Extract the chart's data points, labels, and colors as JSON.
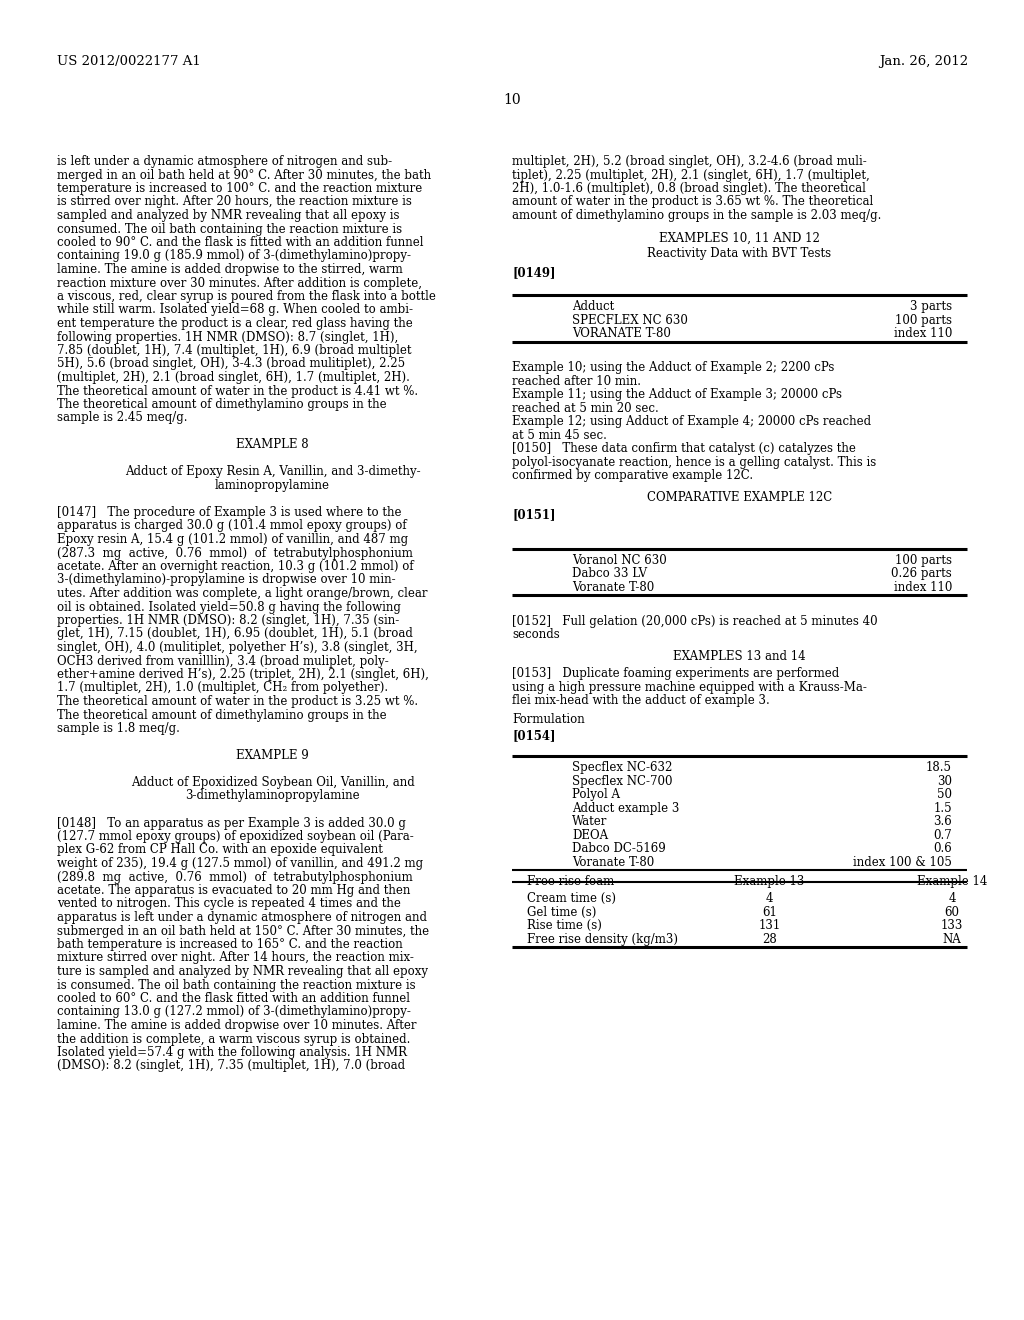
{
  "page_number": "10",
  "header_left": "US 2012/0022177 A1",
  "header_right": "Jan. 26, 2012",
  "left_col_text": [
    "is left under a dynamic atmosphere of nitrogen and sub-",
    "merged in an oil bath held at 90° C. After 30 minutes, the bath",
    "temperature is increased to 100° C. and the reaction mixture",
    "is stirred over night. After 20 hours, the reaction mixture is",
    "sampled and analyzed by NMR revealing that all epoxy is",
    "consumed. The oil bath containing the reaction mixture is",
    "cooled to 90° C. and the flask is fitted with an addition funnel",
    "containing 19.0 g (185.9 mmol) of 3-(dimethylamino)propy-",
    "lamine. The amine is added dropwise to the stirred, warm",
    "reaction mixture over 30 minutes. After addition is complete,",
    "a viscous, red, clear syrup is poured from the flask into a bottle",
    "while still warm. Isolated yield=68 g. When cooled to ambi-",
    "ent temperature the product is a clear, red glass having the",
    "following properties. 1H NMR (DMSO): 8.7 (singlet, 1H),",
    "7.85 (doublet, 1H), 7.4 (multiplet, 1H), 6.9 (broad multiplet",
    "5H), 5.6 (broad singlet, OH), 3-4.3 (broad mulitiplet), 2.25",
    "(multiplet, 2H), 2.1 (broad singlet, 6H), 1.7 (multiplet, 2H).",
    "The theoretical amount of water in the product is 4.41 wt %.",
    "The theoretical amount of dimethylamino groups in the",
    "sample is 2.45 meq/g.",
    "",
    "EXAMPLE 8",
    "",
    "Adduct of Epoxy Resin A, Vanillin, and 3-dimethy-",
    "laminopropylamine",
    "",
    "[0147]   The procedure of Example 3 is used where to the",
    "apparatus is charged 30.0 g (101.4 mmol epoxy groups) of",
    "Epoxy resin A, 15.4 g (101.2 mmol) of vanillin, and 487 mg",
    "(287.3  mg  active,  0.76  mmol)  of  tetrabutylphosphonium",
    "acetate. After an overnight reaction, 10.3 g (101.2 mmol) of",
    "3-(dimethylamino)-propylamine is dropwise over 10 min-",
    "utes. After addition was complete, a light orange/brown, clear",
    "oil is obtained. Isolated yield=50.8 g having the following",
    "properties. 1H NMR (DMSO): 8.2 (singlet, 1H), 7.35 (sin-",
    "glet, 1H), 7.15 (doublet, 1H), 6.95 (doublet, 1H), 5.1 (broad",
    "singlet, OH), 4.0 (mulitiplet, polyether H’s), 3.8 (singlet, 3H,",
    "OCH3 derived from vanilllin), 3.4 (broad muliplet, poly-",
    "ether+amine derived H’s), 2.25 (triplet, 2H), 2.1 (singlet, 6H),",
    "1.7 (multiplet, 2H), 1.0 (multiplet, CH₂ from polyether).",
    "The theoretical amount of water in the product is 3.25 wt %.",
    "The theoretical amount of dimethylamino groups in the",
    "sample is 1.8 meq/g.",
    "",
    "EXAMPLE 9",
    "",
    "Adduct of Epoxidized Soybean Oil, Vanillin, and",
    "3-dimethylaminopropylamine",
    "",
    "[0148]   To an apparatus as per Example 3 is added 30.0 g",
    "(127.7 mmol epoxy groups) of epoxidized soybean oil (Para-",
    "plex G-62 from CP Hall Co. with an epoxide equivalent",
    "weight of 235), 19.4 g (127.5 mmol) of vanillin, and 491.2 mg",
    "(289.8  mg  active,  0.76  mmol)  of  tetrabutylphosphonium",
    "acetate. The apparatus is evacuated to 20 mm Hg and then",
    "vented to nitrogen. This cycle is repeated 4 times and the",
    "apparatus is left under a dynamic atmosphere of nitrogen and",
    "submerged in an oil bath held at 150° C. After 30 minutes, the",
    "bath temperature is increased to 165° C. and the reaction",
    "mixture stirred over night. After 14 hours, the reaction mix-",
    "ture is sampled and analyzed by NMR revealing that all epoxy",
    "is consumed. The oil bath containing the reaction mixture is",
    "cooled to 60° C. and the flask fitted with an addition funnel",
    "containing 13.0 g (127.2 mmol) of 3-(dimethylamino)propy-",
    "lamine. The amine is added dropwise over 10 minutes. After",
    "the addition is complete, a warm viscous syrup is obtained.",
    "Isolated yield=57.4 g with the following analysis. 1H NMR",
    "(DMSO): 8.2 (singlet, 1H), 7.35 (multiplet, 1H), 7.0 (broad"
  ],
  "right_col_text_top": [
    "multiplet, 2H), 5.2 (broad singlet, OH), 3.2-4.6 (broad muli-",
    "tiplet), 2.25 (multiplet, 2H), 2.1 (singlet, 6H), 1.7 (multiplet,",
    "2H), 1.0-1.6 (multiplet), 0.8 (broad singlet). The theoretical",
    "amount of water in the product is 3.65 wt %. The theoretical",
    "amount of dimethylamino groups in the sample is 2.03 meq/g."
  ],
  "examples_10_11_12_header": "EXAMPLES 10, 11 AND 12",
  "examples_10_11_12_subtitle": "Reactivity Data with BVT Tests",
  "para_149": "[0149]",
  "table1": {
    "rows": [
      [
        "Adduct",
        "3 parts"
      ],
      [
        "SPECFLEX NC 630",
        "100 parts"
      ],
      [
        "VORANATE T-80",
        "index 110"
      ]
    ]
  },
  "ex10_lines": [
    "Example 10; using the Adduct of Example 2; 2200 cPs",
    "reached after 10 min."
  ],
  "ex11_lines": [
    "Example 11; using the Adduct of Example 3; 20000 cPs",
    "reached at 5 min 20 sec."
  ],
  "ex12_lines": [
    "Example 12; using Adduct of Example 4; 20000 cPs reached",
    "at 5 min 45 sec."
  ],
  "para_150_lines": [
    "[0150]   These data confirm that catalyst (c) catalyzes the",
    "polyol-isocyanate reaction, hence is a gelling catalyst. This is",
    "confirmed by comparative example 12C."
  ],
  "comp_ex_12c_header": "COMPARATIVE EXAMPLE 12C",
  "para_151": "[0151]",
  "table2": {
    "rows": [
      [
        "Voranol NC 630",
        "100 parts"
      ],
      [
        "Dabco 33 LV",
        "0.26 parts"
      ],
      [
        "Voranate T-80",
        "index 110"
      ]
    ]
  },
  "para_152_lines": [
    "[0152]   Full gelation (20,000 cPs) is reached at 5 minutes 40",
    "seconds"
  ],
  "examples_13_14_header": "EXAMPLES 13 and 14",
  "para_153_lines": [
    "[0153]   Duplicate foaming experiments are performed",
    "using a high pressure machine equipped with a Krauss-Ma-",
    "flei mix-head with the adduct of example 3."
  ],
  "formulation_label": "Formulation",
  "para_154": "[0154]",
  "table3_items": [
    [
      "Specflex NC-632",
      "18.5"
    ],
    [
      "Specflex NC-700",
      "30"
    ],
    [
      "Polyol A",
      "50"
    ],
    [
      "Adduct example 3",
      "1.5"
    ],
    [
      "Water",
      "3.6"
    ],
    [
      "DEOA",
      "0.7"
    ],
    [
      "Dabco DC-5169",
      "0.6"
    ],
    [
      "Voranate T-80",
      "index 100 & 105"
    ]
  ],
  "table4_header": [
    "Free rise foam",
    "Example 13",
    "Example 14"
  ],
  "table4_rows": [
    [
      "Cream time (s)",
      "4",
      "4"
    ],
    [
      "Gel time (s)",
      "61",
      "60"
    ],
    [
      "Rise time (s)",
      "131",
      "133"
    ],
    [
      "Free rise density (kg/m3)",
      "28",
      "NA"
    ]
  ],
  "bg_color": "#ffffff",
  "text_color": "#000000"
}
